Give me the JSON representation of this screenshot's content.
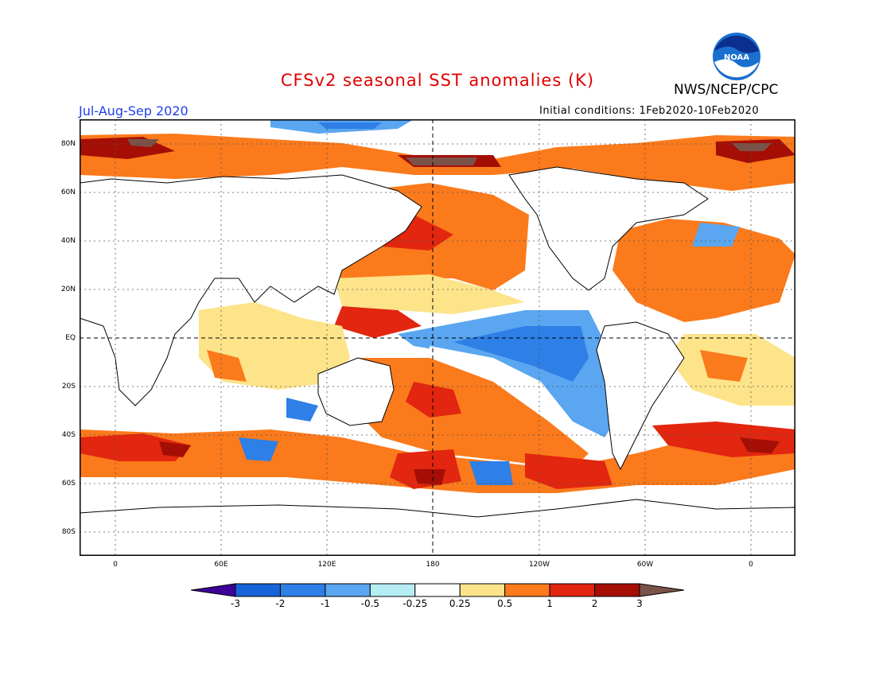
{
  "title": "CFSv2 seasonal SST anomalies (K)",
  "organization": "NWS/NCEP/CPC",
  "logo_text": "NOAA",
  "season": "Jul-Aug-Sep 2020",
  "initial_conditions": "Initial conditions: 1Feb2020-10Feb2020",
  "lat_labels": [
    "80N",
    "60N",
    "40N",
    "20N",
    "EQ",
    "20S",
    "40S",
    "60S",
    "80S"
  ],
  "lon_labels": [
    "0",
    "60E",
    "120E",
    "180",
    "120W",
    "60W",
    "0"
  ],
  "colorbar": {
    "labels": [
      "-3",
      "-2",
      "-1",
      "-0.5",
      "-0.25",
      "0.25",
      "0.5",
      "1",
      "2",
      "3"
    ],
    "colors": [
      "#3b0098",
      "#1764d8",
      "#2e7fe6",
      "#5aa6f0",
      "#b6ecf4",
      "#ffffff",
      "#fde48a",
      "#fb7a1c",
      "#e2260f",
      "#a50e05",
      "#7a5248"
    ]
  },
  "colors": {
    "title": "#e00000",
    "season": "#1f3fe6",
    "ocean_base": "#fde48a"
  }
}
